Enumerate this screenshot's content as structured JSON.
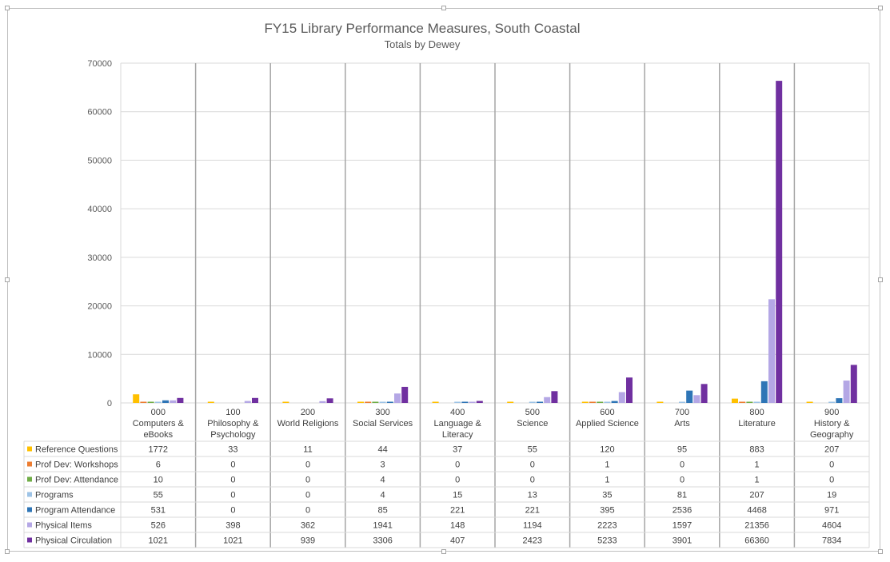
{
  "chart_data": {
    "type": "bar",
    "title": "FY15 Library Performance Measures, South Coastal",
    "subtitle": "Totals by Dewey",
    "ylim": [
      0,
      70000
    ],
    "yticks": [
      "0",
      "10000",
      "20000",
      "30000",
      "40000",
      "50000",
      "60000",
      "70000"
    ],
    "categories": [
      [
        "000",
        "Computers &",
        "eBooks"
      ],
      [
        "100",
        "Philosophy &",
        "Psychology"
      ],
      [
        "200",
        "World Religions"
      ],
      [
        "300",
        "Social Services"
      ],
      [
        "400",
        "Language &",
        "Literacy"
      ],
      [
        "500",
        "Science"
      ],
      [
        "600",
        "Applied Science"
      ],
      [
        "700",
        "Arts"
      ],
      [
        "800",
        "Literature"
      ],
      [
        "900",
        "History &",
        "Geography"
      ]
    ],
    "series": [
      {
        "name": "Reference Questions",
        "color": "#FFC000",
        "values": [
          1772,
          33,
          11,
          44,
          37,
          55,
          120,
          95,
          883,
          207
        ]
      },
      {
        "name": "Prof Dev: Workshops",
        "color": "#ED7D31",
        "values": [
          6,
          0,
          0,
          3,
          0,
          0,
          1,
          0,
          1,
          0
        ]
      },
      {
        "name": "Prof Dev: Attendance",
        "color": "#70AD47",
        "values": [
          10,
          0,
          0,
          4,
          0,
          0,
          1,
          0,
          1,
          0
        ]
      },
      {
        "name": "Programs",
        "color": "#9DC3E6",
        "values": [
          55,
          0,
          0,
          4,
          15,
          13,
          35,
          81,
          207,
          19
        ]
      },
      {
        "name": "Program Attendance",
        "color": "#2E75B6",
        "values": [
          531,
          0,
          0,
          85,
          221,
          221,
          395,
          2536,
          4468,
          971
        ]
      },
      {
        "name": "Physical Items",
        "color": "#B4A7E5",
        "values": [
          526,
          398,
          362,
          1941,
          148,
          1194,
          2223,
          1597,
          21356,
          4604
        ]
      },
      {
        "name": "Physical Circulation",
        "color": "#7030A0",
        "values": [
          1021,
          1021,
          939,
          3306,
          407,
          2423,
          5233,
          3901,
          66360,
          7834
        ]
      }
    ],
    "grid": true,
    "legend": "data table (left)"
  }
}
